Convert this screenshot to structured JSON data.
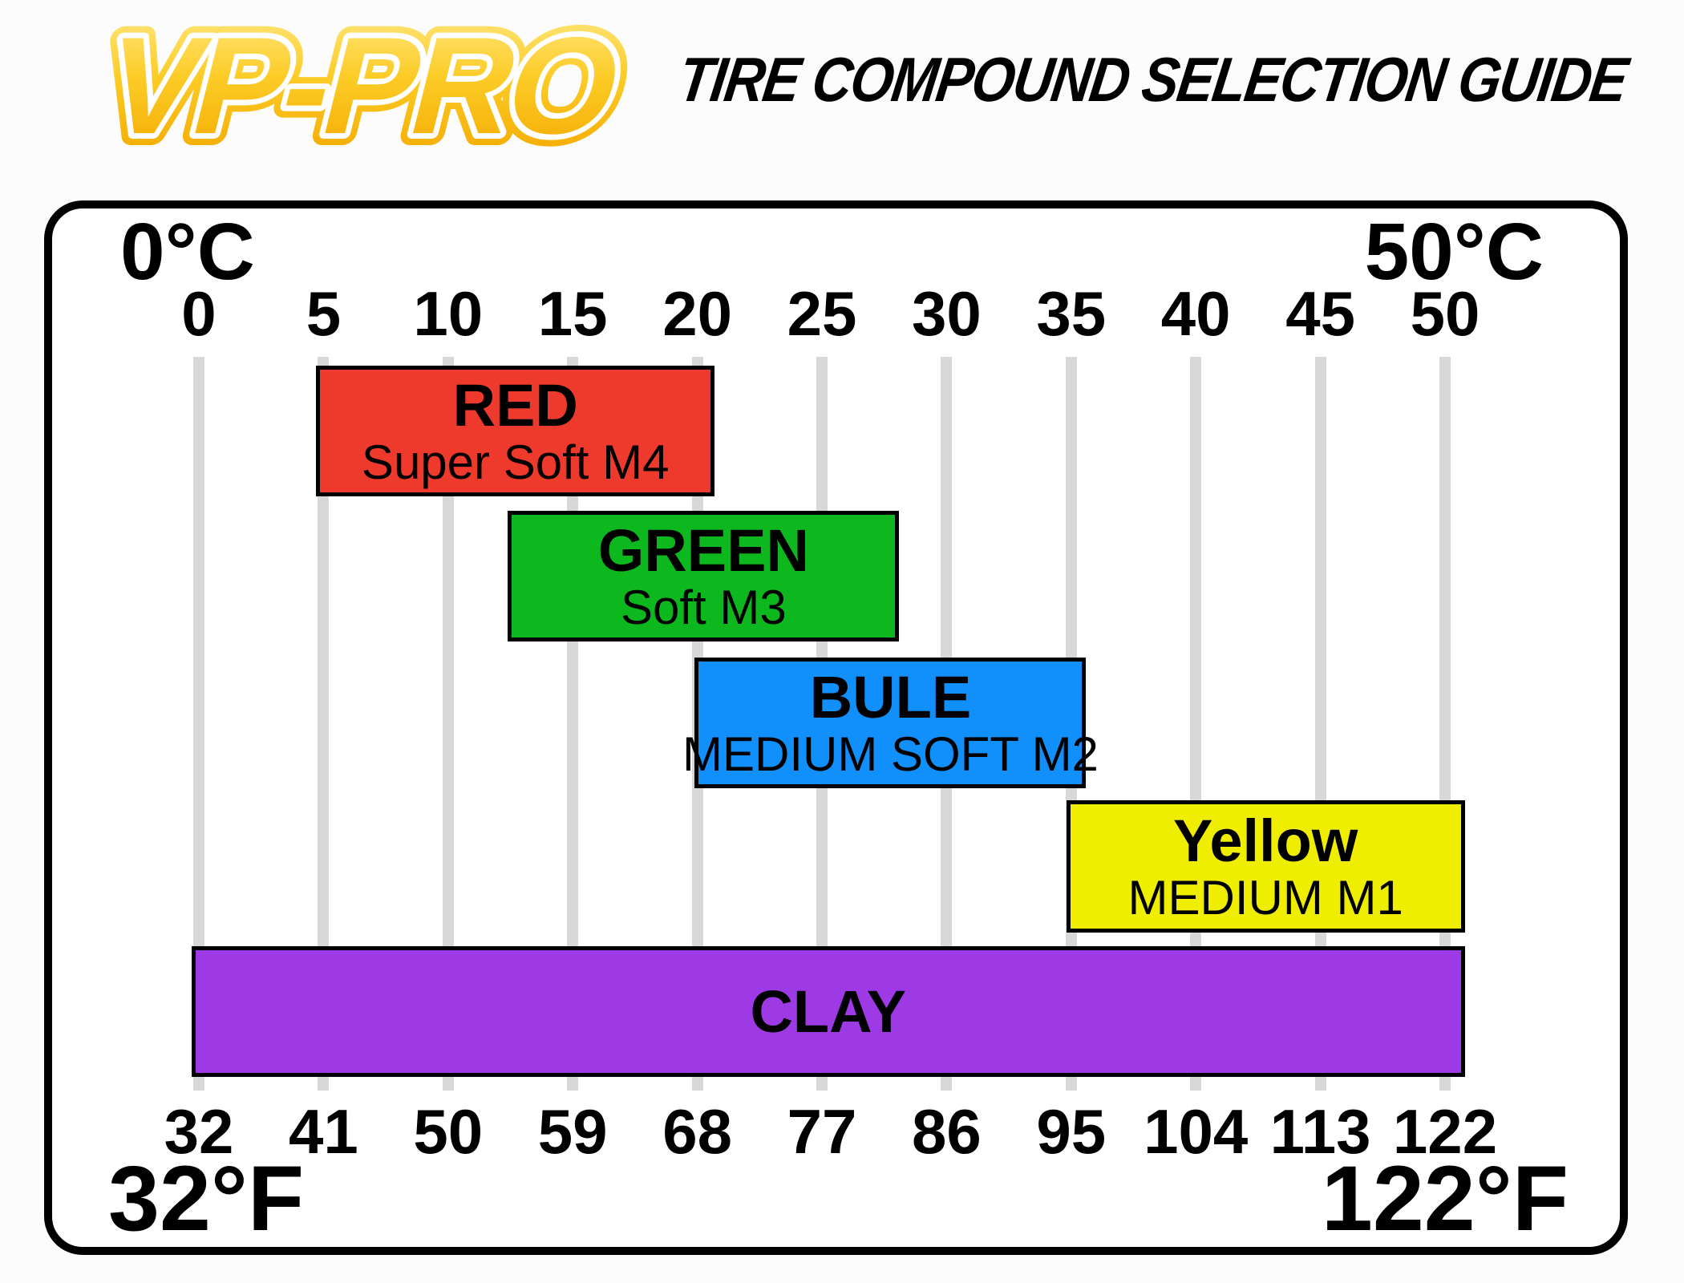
{
  "page": {
    "background": "#FDFCFC"
  },
  "header": {
    "logo_text": "VP-PRO",
    "title": "TIRE COMPOUND SELECTION GUIDE",
    "logo_gradient": [
      "#FFE77E",
      "#FCCB26",
      "#F3A900"
    ]
  },
  "chart_data": {
    "type": "bar",
    "orientation": "horizontal-range",
    "title": "TIRE COMPOUND SELECTION GUIDE",
    "grid": true,
    "gridline_color": "#D8D8D8",
    "axis_top": {
      "unit": "°C",
      "corner_left": "0°C",
      "corner_right": "50°C",
      "range": [
        0,
        50
      ],
      "ticks": [
        0,
        5,
        10,
        15,
        20,
        25,
        30,
        35,
        40,
        45,
        50
      ]
    },
    "axis_bottom": {
      "unit": "°F",
      "corner_left": "32°F",
      "corner_right": "122°F",
      "range": [
        32,
        122
      ],
      "ticks": [
        32,
        41,
        50,
        59,
        68,
        77,
        86,
        95,
        104,
        113,
        122
      ]
    },
    "bars": [
      {
        "name": "RED",
        "subtitle": "Super Soft M4",
        "color": "#EE3A2C",
        "range_c": [
          5,
          20
        ],
        "range_f": [
          41,
          68
        ],
        "draw_c": [
          4.7,
          20.7
        ]
      },
      {
        "name": "GREEN",
        "subtitle": "Soft M3",
        "color": "#0DB81E",
        "range_c": [
          12.5,
          27.5
        ],
        "range_f": [
          54.5,
          81.5
        ],
        "draw_c": [
          12.4,
          28.1
        ]
      },
      {
        "name": "BULE",
        "subtitle": "MEDIUM SOFT M2",
        "color": "#118FFA",
        "range_c": [
          20,
          35
        ],
        "range_f": [
          68,
          95
        ],
        "draw_c": [
          19.9,
          35.6
        ]
      },
      {
        "name": "Yellow",
        "subtitle": "MEDIUM M1",
        "color": "#EFEE00",
        "range_c": [
          35,
          50
        ],
        "range_f": [
          95,
          122
        ],
        "draw_c": [
          34.8,
          50.8
        ]
      },
      {
        "name": "CLAY",
        "subtitle": "",
        "color": "#9D3AE6",
        "range_c": [
          0,
          50
        ],
        "range_f": [
          32,
          122
        ],
        "draw_c": [
          -0.3,
          50.8
        ]
      }
    ]
  }
}
